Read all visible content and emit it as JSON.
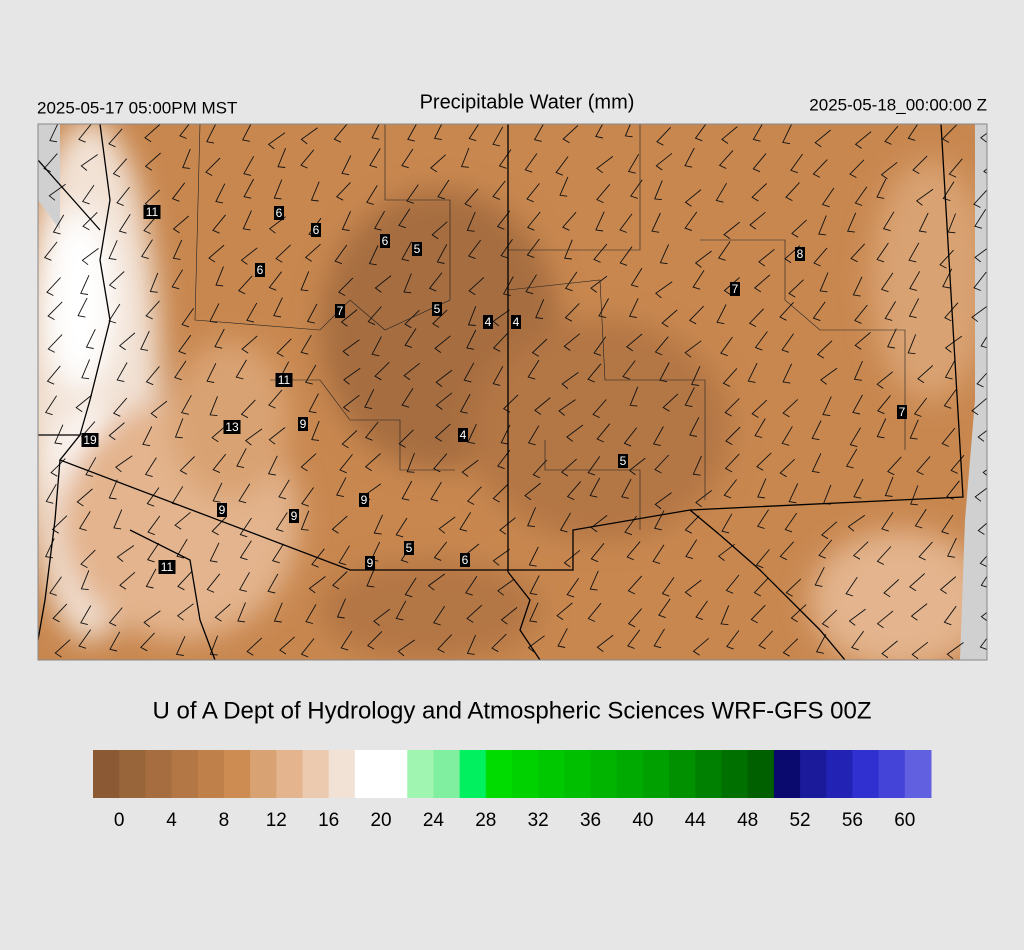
{
  "header": {
    "left": "2025-05-17 05:00PM MST",
    "title": "Precipitable Water (mm)",
    "right": "2025-05-18_00:00:00 Z"
  },
  "map": {
    "station_values": [
      11,
      6,
      6,
      6,
      5,
      6,
      7,
      5,
      4,
      4,
      7,
      8,
      11,
      13,
      9,
      19,
      4,
      5,
      7,
      9,
      9,
      9,
      5,
      6,
      9,
      11
    ]
  },
  "footer": "U of A Dept of Hydrology and Atmospheric Sciences WRF-GFS 00Z",
  "colorbar": {
    "ticks": [
      0,
      4,
      8,
      12,
      16,
      20,
      24,
      28,
      32,
      36,
      40,
      44,
      48,
      52,
      56,
      60
    ],
    "colors": [
      "#8b5a34",
      "#98643a",
      "#a66d40",
      "#b37645",
      "#c0804a",
      "#cd8c52",
      "#d9a272",
      "#e3b48d",
      "#ebcab0",
      "#f2e2d5",
      "#ffffff",
      "#ffffff",
      "#a0f5b0",
      "#80f0a0",
      "#00f060",
      "#00dc00",
      "#00d200",
      "#00c800",
      "#00be00",
      "#00b400",
      "#00aa00",
      "#00a000",
      "#009000",
      "#008000",
      "#007000",
      "#006000",
      "#0a0a6e",
      "#1a1a9a",
      "#2222b4",
      "#3030d0",
      "#4444d8",
      "#6060e0"
    ]
  }
}
